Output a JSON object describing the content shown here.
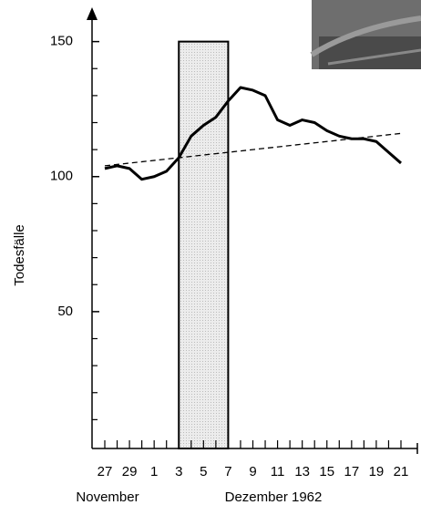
{
  "chart_data": {
    "type": "line",
    "y_label": "Todesfälle",
    "month_labels": [
      "November",
      "Dezember 1962"
    ],
    "categories": [
      "27",
      null,
      "29",
      null,
      "1",
      null,
      "3",
      null,
      "5",
      null,
      "7",
      null,
      "9",
      null,
      "11",
      null,
      "13",
      null,
      "15",
      null,
      "17",
      null,
      "19",
      null,
      "21"
    ],
    "series": [
      {
        "color": "#000000",
        "values": [
          103,
          104,
          103,
          99,
          100,
          102,
          107,
          115,
          119,
          122,
          128,
          133,
          132,
          130,
          121,
          119,
          121,
          120,
          117,
          115,
          114,
          114,
          113,
          109,
          105
        ]
      }
    ],
    "trend": {
      "values": [
        104,
        116
      ],
      "color": "#000000"
    },
    "highlight": {
      "start": "3",
      "end": "7",
      "top": 150,
      "color": "#e2e2e2"
    },
    "ylim": [
      0,
      160
    ],
    "yticks": [
      50,
      100,
      150
    ],
    "yminor_ticks": [
      10,
      20,
      30,
      40,
      60,
      70,
      80,
      90,
      110,
      120,
      130,
      140
    ]
  }
}
